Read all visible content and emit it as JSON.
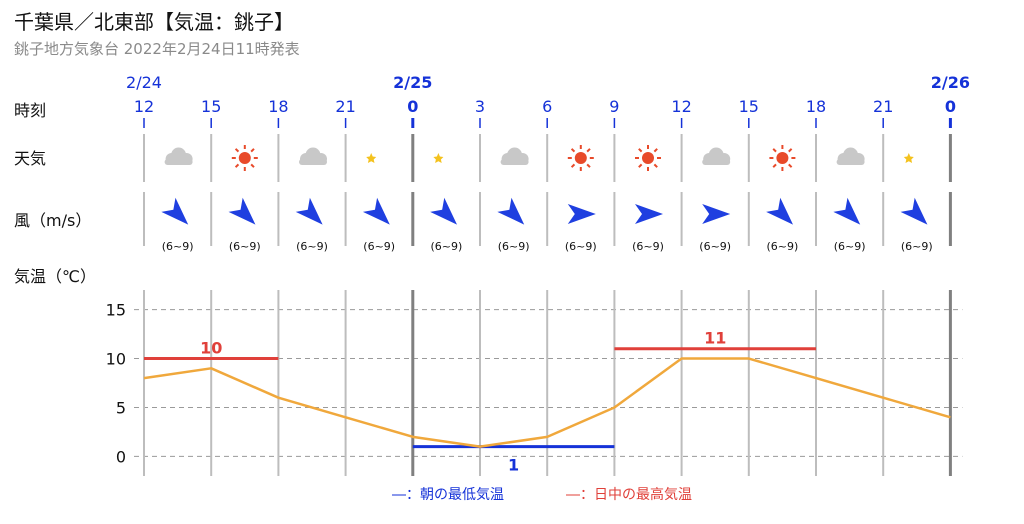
{
  "header": {
    "title": "千葉県／北東部【気温：銚子】",
    "subtitle": "銚子地方気象台 2022年2月24日11時発表"
  },
  "row_labels": {
    "time": "時刻",
    "weather": "天気",
    "wind": "風（m/s）",
    "temp": "気温（℃）"
  },
  "colors": {
    "min_line": "#1532d8",
    "max_line": "#e0403a",
    "temp_line": "#f0a83c",
    "wind_arrow": "#1f3fe0",
    "sun": "#e84a2a",
    "moon": "#f4c21e",
    "cloud": "#c8c8c8"
  },
  "columns": [
    {
      "date": "2/24",
      "hour": "12",
      "day_start": false,
      "weather": "cloudy-icon",
      "wind_dir": "southeast",
      "wind_range": "(6~9)"
    },
    {
      "date": "",
      "hour": "15",
      "day_start": false,
      "weather": "sunny-icon",
      "wind_dir": "southeast",
      "wind_range": "(6~9)"
    },
    {
      "date": "",
      "hour": "18",
      "day_start": false,
      "weather": "cloudy-icon",
      "wind_dir": "southeast",
      "wind_range": "(6~9)"
    },
    {
      "date": "",
      "hour": "21",
      "day_start": false,
      "weather": "clear-night-icon",
      "wind_dir": "southeast",
      "wind_range": "(6~9)"
    },
    {
      "date": "2/25",
      "hour": "0",
      "day_start": true,
      "weather": "clear-night-icon",
      "wind_dir": "southeast",
      "wind_range": "(6~9)"
    },
    {
      "date": "",
      "hour": "3",
      "day_start": false,
      "weather": "cloudy-icon",
      "wind_dir": "southeast",
      "wind_range": "(6~9)"
    },
    {
      "date": "",
      "hour": "6",
      "day_start": false,
      "weather": "sunny-icon",
      "wind_dir": "east",
      "wind_range": "(6~9)"
    },
    {
      "date": "",
      "hour": "9",
      "day_start": false,
      "weather": "sunny-icon",
      "wind_dir": "east",
      "wind_range": "(6~9)"
    },
    {
      "date": "",
      "hour": "12",
      "day_start": false,
      "weather": "cloudy-icon",
      "wind_dir": "east",
      "wind_range": "(6~9)"
    },
    {
      "date": "",
      "hour": "15",
      "day_start": false,
      "weather": "sunny-icon",
      "wind_dir": "southeast",
      "wind_range": "(6~9)"
    },
    {
      "date": "",
      "hour": "18",
      "day_start": false,
      "weather": "cloudy-icon",
      "wind_dir": "southeast",
      "wind_range": "(6~9)"
    },
    {
      "date": "",
      "hour": "21",
      "day_start": false,
      "weather": "clear-night-icon",
      "wind_dir": "southeast",
      "wind_range": "(6~9)"
    },
    {
      "date": "2/26",
      "hour": "0",
      "day_start": true,
      "weather": "",
      "wind_dir": "",
      "wind_range": ""
    }
  ],
  "chart_data": {
    "type": "line",
    "x": [
      "2/24 12",
      "15",
      "18",
      "21",
      "2/25 0",
      "3",
      "6",
      "9",
      "12",
      "15",
      "18",
      "21",
      "2/26 0"
    ],
    "series": [
      {
        "values": [
          8,
          9,
          6,
          4,
          2,
          1,
          2,
          5,
          10,
          10,
          8,
          6,
          4
        ]
      }
    ],
    "ylim": [
      -2,
      17
    ],
    "yticks": [
      0,
      5,
      10,
      15
    ],
    "grid": true,
    "min_temp": {
      "value": 1,
      "label": "1",
      "from_index": 4,
      "to_index": 7
    },
    "max_temps": [
      {
        "value": 10,
        "label": "10",
        "from_index": 0,
        "to_index": 2
      },
      {
        "value": 11,
        "label": "11",
        "from_index": 7,
        "to_index": 10
      }
    ],
    "legend": [
      {
        "text": "―：朝の最低気温",
        "kind": "min"
      },
      {
        "text": "―：日中の最高気温",
        "kind": "max"
      }
    ]
  }
}
